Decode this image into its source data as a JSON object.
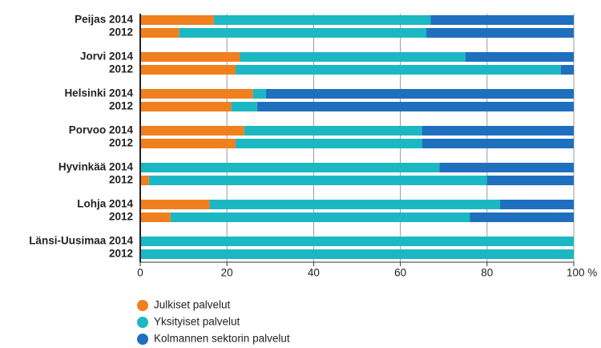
{
  "chart_data": {
    "type": "stacked-barh",
    "categories": [
      "Peijas 2014",
      "2012",
      "Jorvi 2014",
      "2012",
      "Helsinki 2014",
      "2012",
      "Porvoo 2014",
      "2012",
      "Hyvinkää 2014",
      "2012",
      "Lohja 2014",
      "2012",
      "Länsi-Uusimaa 2014",
      "2012"
    ],
    "series": [
      {
        "name": "Julkiset palvelut",
        "color": "#f07f1d",
        "values": [
          17,
          9,
          23,
          22,
          26,
          21,
          24,
          22,
          0,
          2,
          16,
          7,
          0,
          0
        ]
      },
      {
        "name": "Yksityiset palvelut",
        "color": "#1bb8c4",
        "values": [
          50,
          57,
          52,
          75,
          3,
          6,
          41,
          43,
          69,
          78,
          67,
          69,
          100,
          100
        ]
      },
      {
        "name": "Kolmannen sektorin palvelut",
        "color": "#1f6fbf",
        "values": [
          33,
          34,
          25,
          3,
          71,
          73,
          35,
          35,
          31,
          20,
          17,
          24,
          0,
          0
        ]
      }
    ],
    "xlim": [
      0,
      100
    ],
    "xticks": [
      0,
      20,
      40,
      60,
      80,
      {
        "value": 100,
        "label": "100 %"
      }
    ],
    "grid": true
  }
}
